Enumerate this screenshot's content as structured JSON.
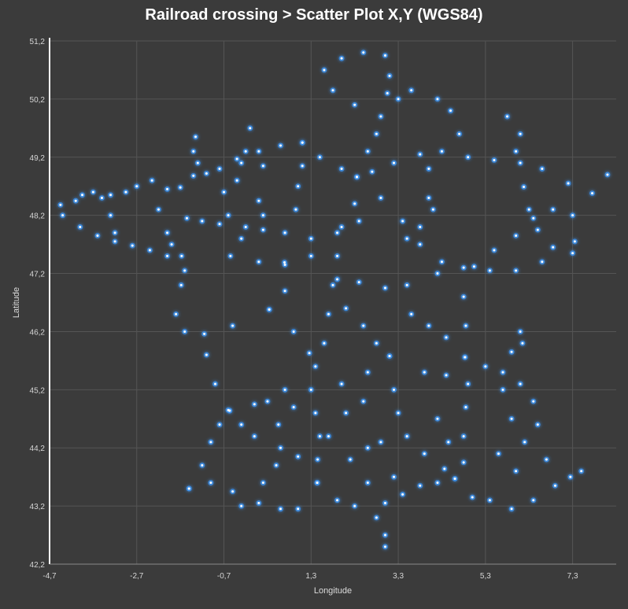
{
  "chart_data": {
    "type": "scatter",
    "title": "Railroad  crossing > Scatter Plot X,Y (WGS84)",
    "xlabel": "Longitude",
    "ylabel": "Latitude",
    "xlim": [
      -4.7,
      8.3
    ],
    "ylim": [
      42.2,
      51.2
    ],
    "x_ticks": [
      -4.7,
      -2.7,
      -0.7,
      1.3,
      3.3,
      5.3,
      7.3
    ],
    "x_tick_labels": [
      "-4,7",
      "-2,7",
      "-0,7",
      "1,3",
      "3,3",
      "5,3",
      "7,3"
    ],
    "y_ticks": [
      42.2,
      43.2,
      44.2,
      45.2,
      46.2,
      47.2,
      48.2,
      49.2,
      50.2,
      51.2
    ],
    "y_tick_labels": [
      "42,2",
      "43,2",
      "44,2",
      "45,2",
      "46,2",
      "47,2",
      "48,2",
      "49,2",
      "50,2",
      "51,2"
    ],
    "grid": true,
    "colors": {
      "point": "#ffffff",
      "glow": "#3d8fe8",
      "background": "#3b3b3b",
      "grid": "#555555",
      "axis": "#ffffff"
    },
    "series": [
      {
        "values": [
          [
            -4.45,
            48.38
          ],
          [
            -4.1,
            48.45
          ],
          [
            -3.7,
            48.6
          ],
          [
            -3.3,
            48.55
          ],
          [
            -2.95,
            48.6
          ],
          [
            -2.7,
            48.7
          ],
          [
            -2.35,
            48.8
          ],
          [
            -2.0,
            48.65
          ],
          [
            -1.7,
            48.68
          ],
          [
            -1.4,
            48.88
          ],
          [
            -1.1,
            48.92
          ],
          [
            -0.8,
            49.0
          ],
          [
            -0.4,
            49.17
          ],
          [
            0.1,
            49.3
          ],
          [
            0.6,
            49.4
          ],
          [
            1.1,
            49.45
          ],
          [
            -4.4,
            48.2
          ],
          [
            -4.0,
            48.0
          ],
          [
            -3.6,
            47.85
          ],
          [
            -3.2,
            47.75
          ],
          [
            -2.8,
            47.68
          ],
          [
            -2.4,
            47.6
          ],
          [
            -2.0,
            47.5
          ],
          [
            -1.6,
            47.25
          ],
          [
            -1.55,
            48.15
          ],
          [
            -1.67,
            47.5
          ],
          [
            -1.68,
            47.0
          ],
          [
            -1.8,
            46.5
          ],
          [
            -1.6,
            46.2
          ],
          [
            -1.1,
            45.8
          ],
          [
            -0.9,
            45.3
          ],
          [
            -0.6,
            44.85
          ],
          [
            -1.2,
            48.1
          ],
          [
            -0.8,
            48.05
          ],
          [
            -0.2,
            48.0
          ],
          [
            0.2,
            47.95
          ],
          [
            0.7,
            47.9
          ],
          [
            1.3,
            47.8
          ],
          [
            1.9,
            47.9
          ],
          [
            2.4,
            48.1
          ],
          [
            -0.55,
            47.5
          ],
          [
            0.1,
            47.4
          ],
          [
            0.7,
            47.35
          ],
          [
            1.3,
            47.5
          ],
          [
            1.9,
            47.1
          ],
          [
            2.4,
            47.05
          ],
          [
            3.0,
            46.95
          ],
          [
            3.5,
            47.0
          ],
          [
            4.2,
            47.2
          ],
          [
            4.8,
            47.3
          ],
          [
            5.4,
            47.25
          ],
          [
            6.0,
            47.25
          ],
          [
            6.6,
            47.4
          ],
          [
            1.1,
            49.45
          ],
          [
            1.5,
            49.2
          ],
          [
            2.0,
            49.0
          ],
          [
            2.35,
            48.86
          ],
          [
            2.7,
            48.95
          ],
          [
            3.2,
            49.1
          ],
          [
            3.8,
            49.25
          ],
          [
            4.3,
            49.3
          ],
          [
            4.9,
            49.2
          ],
          [
            5.5,
            49.15
          ],
          [
            6.1,
            49.1
          ],
          [
            6.6,
            49.0
          ],
          [
            7.2,
            48.75
          ],
          [
            7.75,
            48.58
          ],
          [
            8.1,
            48.9
          ],
          [
            2.35,
            48.86
          ],
          [
            2.6,
            49.3
          ],
          [
            2.8,
            49.6
          ],
          [
            2.9,
            49.9
          ],
          [
            3.05,
            50.3
          ],
          [
            3.1,
            50.6
          ],
          [
            3.0,
            50.95
          ],
          [
            2.5,
            51.0
          ],
          [
            2.0,
            50.9
          ],
          [
            1.6,
            50.7
          ],
          [
            1.8,
            50.35
          ],
          [
            2.3,
            50.1
          ],
          [
            2.35,
            48.86
          ],
          [
            2.3,
            48.4
          ],
          [
            2.0,
            48.0
          ],
          [
            1.9,
            47.5
          ],
          [
            1.8,
            47.0
          ],
          [
            1.7,
            46.5
          ],
          [
            1.6,
            46.0
          ],
          [
            1.4,
            45.6
          ],
          [
            1.3,
            45.2
          ],
          [
            1.4,
            44.8
          ],
          [
            1.5,
            44.4
          ],
          [
            1.45,
            44.0
          ],
          [
            1.44,
            43.6
          ],
          [
            1.9,
            43.3
          ],
          [
            2.3,
            43.2
          ],
          [
            2.8,
            43.0
          ],
          [
            3.0,
            42.7
          ],
          [
            3.0,
            42.5
          ],
          [
            2.35,
            48.86
          ],
          [
            2.9,
            48.5
          ],
          [
            3.4,
            48.1
          ],
          [
            3.8,
            47.7
          ],
          [
            4.3,
            47.4
          ],
          [
            4.8,
            46.8
          ],
          [
            4.85,
            46.3
          ],
          [
            4.83,
            45.76
          ],
          [
            4.9,
            45.3
          ],
          [
            4.85,
            44.9
          ],
          [
            4.8,
            44.4
          ],
          [
            4.8,
            43.95
          ],
          [
            4.6,
            43.67
          ],
          [
            4.6,
            43.67
          ],
          [
            4.2,
            43.6
          ],
          [
            3.8,
            43.55
          ],
          [
            3.4,
            43.4
          ],
          [
            3.0,
            43.25
          ],
          [
            5.0,
            43.35
          ],
          [
            5.4,
            43.3
          ],
          [
            5.9,
            43.15
          ],
          [
            6.4,
            43.3
          ],
          [
            6.9,
            43.55
          ],
          [
            7.25,
            43.7
          ],
          [
            7.5,
            43.8
          ],
          [
            -1.5,
            43.5
          ],
          [
            -1.0,
            43.6
          ],
          [
            -0.5,
            43.45
          ],
          [
            0.1,
            43.25
          ],
          [
            0.6,
            43.15
          ],
          [
            1.0,
            43.15
          ],
          [
            1.44,
            43.6
          ],
          [
            -0.57,
            44.84
          ],
          [
            -0.3,
            44.6
          ],
          [
            0.0,
            44.4
          ],
          [
            0.6,
            44.2
          ],
          [
            1.0,
            44.05
          ],
          [
            1.44,
            43.6
          ],
          [
            -1.5,
            43.5
          ],
          [
            -1.2,
            43.9
          ],
          [
            -1.0,
            44.3
          ],
          [
            -0.8,
            44.6
          ],
          [
            -0.57,
            44.84
          ],
          [
            4.83,
            45.76
          ],
          [
            5.3,
            45.6
          ],
          [
            5.7,
            45.5
          ],
          [
            6.1,
            45.3
          ],
          [
            6.4,
            45.0
          ],
          [
            5.7,
            45.2
          ],
          [
            5.9,
            45.85
          ],
          [
            6.1,
            46.2
          ],
          [
            6.15,
            46.0
          ],
          [
            4.83,
            45.76
          ],
          [
            4.4,
            45.45
          ],
          [
            3.9,
            45.5
          ],
          [
            3.1,
            45.78
          ],
          [
            2.8,
            46.0
          ],
          [
            2.5,
            46.3
          ],
          [
            2.1,
            46.6
          ],
          [
            3.1,
            45.78
          ],
          [
            3.2,
            45.2
          ],
          [
            3.3,
            44.8
          ],
          [
            3.5,
            44.4
          ],
          [
            3.9,
            44.1
          ],
          [
            4.36,
            43.84
          ],
          [
            0.7,
            45.2
          ],
          [
            0.3,
            45.0
          ],
          [
            0.0,
            44.95
          ],
          [
            -0.57,
            44.84
          ],
          [
            0.34,
            46.58
          ],
          [
            0.9,
            46.2
          ],
          [
            1.26,
            45.83
          ],
          [
            -1.15,
            46.16
          ],
          [
            -0.5,
            46.3
          ],
          [
            0.34,
            46.58
          ],
          [
            0.7,
            46.9
          ],
          [
            0.69,
            47.39
          ],
          [
            5.04,
            47.32
          ],
          [
            5.5,
            47.6
          ],
          [
            6.0,
            47.85
          ],
          [
            6.4,
            48.15
          ],
          [
            6.85,
            48.3
          ],
          [
            7.3,
            48.2
          ],
          [
            7.35,
            47.75
          ],
          [
            7.3,
            47.55
          ],
          [
            6.18,
            48.69
          ],
          [
            6.3,
            48.3
          ],
          [
            6.5,
            47.95
          ],
          [
            6.85,
            47.65
          ],
          [
            6.0,
            49.3
          ],
          [
            6.1,
            49.6
          ],
          [
            5.8,
            49.9
          ],
          [
            4.0,
            49.0
          ],
          [
            4.0,
            48.5
          ],
          [
            4.1,
            48.3
          ],
          [
            3.8,
            48.0
          ],
          [
            3.5,
            47.8
          ],
          [
            4.7,
            49.6
          ],
          [
            4.5,
            50.0
          ],
          [
            4.2,
            50.2
          ],
          [
            3.6,
            50.35
          ],
          [
            3.3,
            50.2
          ],
          [
            -3.5,
            48.5
          ],
          [
            -3.3,
            48.2
          ],
          [
            -3.2,
            47.9
          ],
          [
            -2.2,
            48.3
          ],
          [
            -2.0,
            47.9
          ],
          [
            -1.9,
            47.7
          ],
          [
            -0.7,
            48.6
          ],
          [
            -0.6,
            48.2
          ],
          [
            -0.3,
            47.8
          ],
          [
            -0.2,
            49.3
          ],
          [
            -0.3,
            49.1
          ],
          [
            -0.4,
            48.8
          ],
          [
            1.1,
            49.05
          ],
          [
            1.0,
            48.7
          ],
          [
            0.95,
            48.3
          ],
          [
            0.1,
            48.45
          ],
          [
            0.2,
            48.2
          ],
          [
            -1.35,
            49.55
          ],
          [
            -1.4,
            49.3
          ],
          [
            -1.3,
            49.1
          ],
          [
            -3.95,
            48.55
          ],
          [
            0.2,
            49.05
          ],
          [
            -0.1,
            49.7
          ],
          [
            4.2,
            44.7
          ],
          [
            4.45,
            44.3
          ],
          [
            5.9,
            44.7
          ],
          [
            6.2,
            44.3
          ],
          [
            6.5,
            44.6
          ],
          [
            5.6,
            44.1
          ],
          [
            6.0,
            43.8
          ],
          [
            6.7,
            44.0
          ],
          [
            2.9,
            44.3
          ],
          [
            2.6,
            44.2
          ],
          [
            2.2,
            44.0
          ],
          [
            2.5,
            45.0
          ],
          [
            2.0,
            45.3
          ],
          [
            2.6,
            45.5
          ],
          [
            3.6,
            46.5
          ],
          [
            4.0,
            46.3
          ],
          [
            4.4,
            46.1
          ],
          [
            0.9,
            44.9
          ],
          [
            0.55,
            44.6
          ],
          [
            1.7,
            44.4
          ],
          [
            2.1,
            44.8
          ],
          [
            -0.3,
            43.2
          ],
          [
            0.2,
            43.6
          ],
          [
            0.5,
            43.9
          ],
          [
            2.6,
            43.6
          ],
          [
            3.2,
            43.7
          ]
        ]
      }
    ]
  }
}
